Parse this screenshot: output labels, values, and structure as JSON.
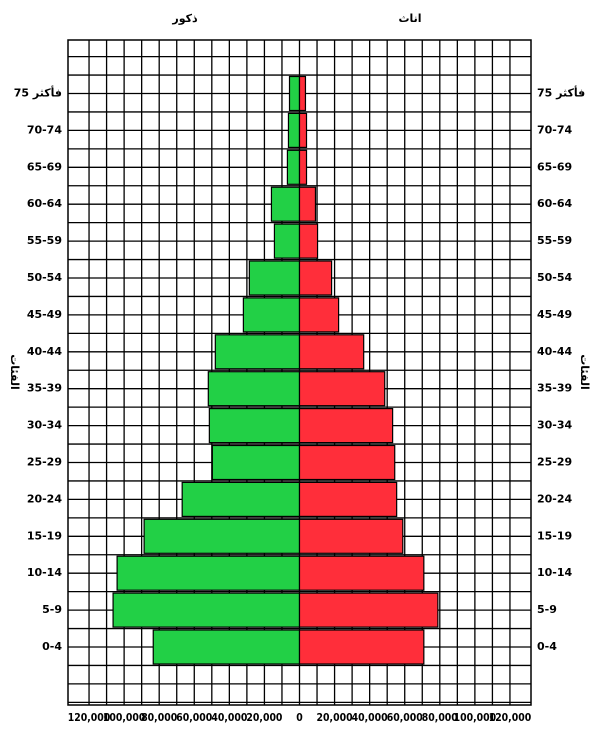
{
  "chart_data": {
    "type": "pyramid",
    "y_label": "الفئات",
    "categories": [
      "0-4",
      "5-9",
      "10-14",
      "15-19",
      "20-24",
      "25-29",
      "30-34",
      "35-39",
      "40-44",
      "45-49",
      "50-54",
      "55-59",
      "60-64",
      "65-69",
      "70-74",
      "75 فأكثر"
    ],
    "series": [
      {
        "name": "ذكور",
        "color": "#22d046",
        "values": [
          -83400,
          -106300,
          -104000,
          -88600,
          -66900,
          -49700,
          -51400,
          -52000,
          -48000,
          -32000,
          -28600,
          -14300,
          -16000,
          -6900,
          -6300,
          -5700
        ]
      },
      {
        "name": "اناث",
        "color": "#ff2e3a",
        "values": [
          70900,
          78900,
          70900,
          58900,
          55400,
          54300,
          53100,
          48600,
          36600,
          22300,
          18300,
          10300,
          9100,
          4000,
          4000,
          3400
        ]
      }
    ],
    "xlim": [
      -132000,
      132000
    ],
    "xticks": [
      {
        "value": -120000,
        "label": "120,000"
      },
      {
        "value": -100000,
        "label": "100,000"
      },
      {
        "value": -80000,
        "label": "80,000"
      },
      {
        "value": -60000,
        "label": "60,000"
      },
      {
        "value": -40000,
        "label": "40,000"
      },
      {
        "value": -20000,
        "label": "20,000"
      },
      0,
      {
        "value": 20000,
        "label": "20,000"
      },
      {
        "value": 40000,
        "label": "40,000"
      },
      {
        "value": 60000,
        "label": "60,000"
      },
      {
        "value": 80000,
        "label": "80,000"
      },
      {
        "value": 100000,
        "label": "100,000"
      },
      {
        "value": 120000,
        "label": "120,000"
      }
    ],
    "grid": true
  }
}
